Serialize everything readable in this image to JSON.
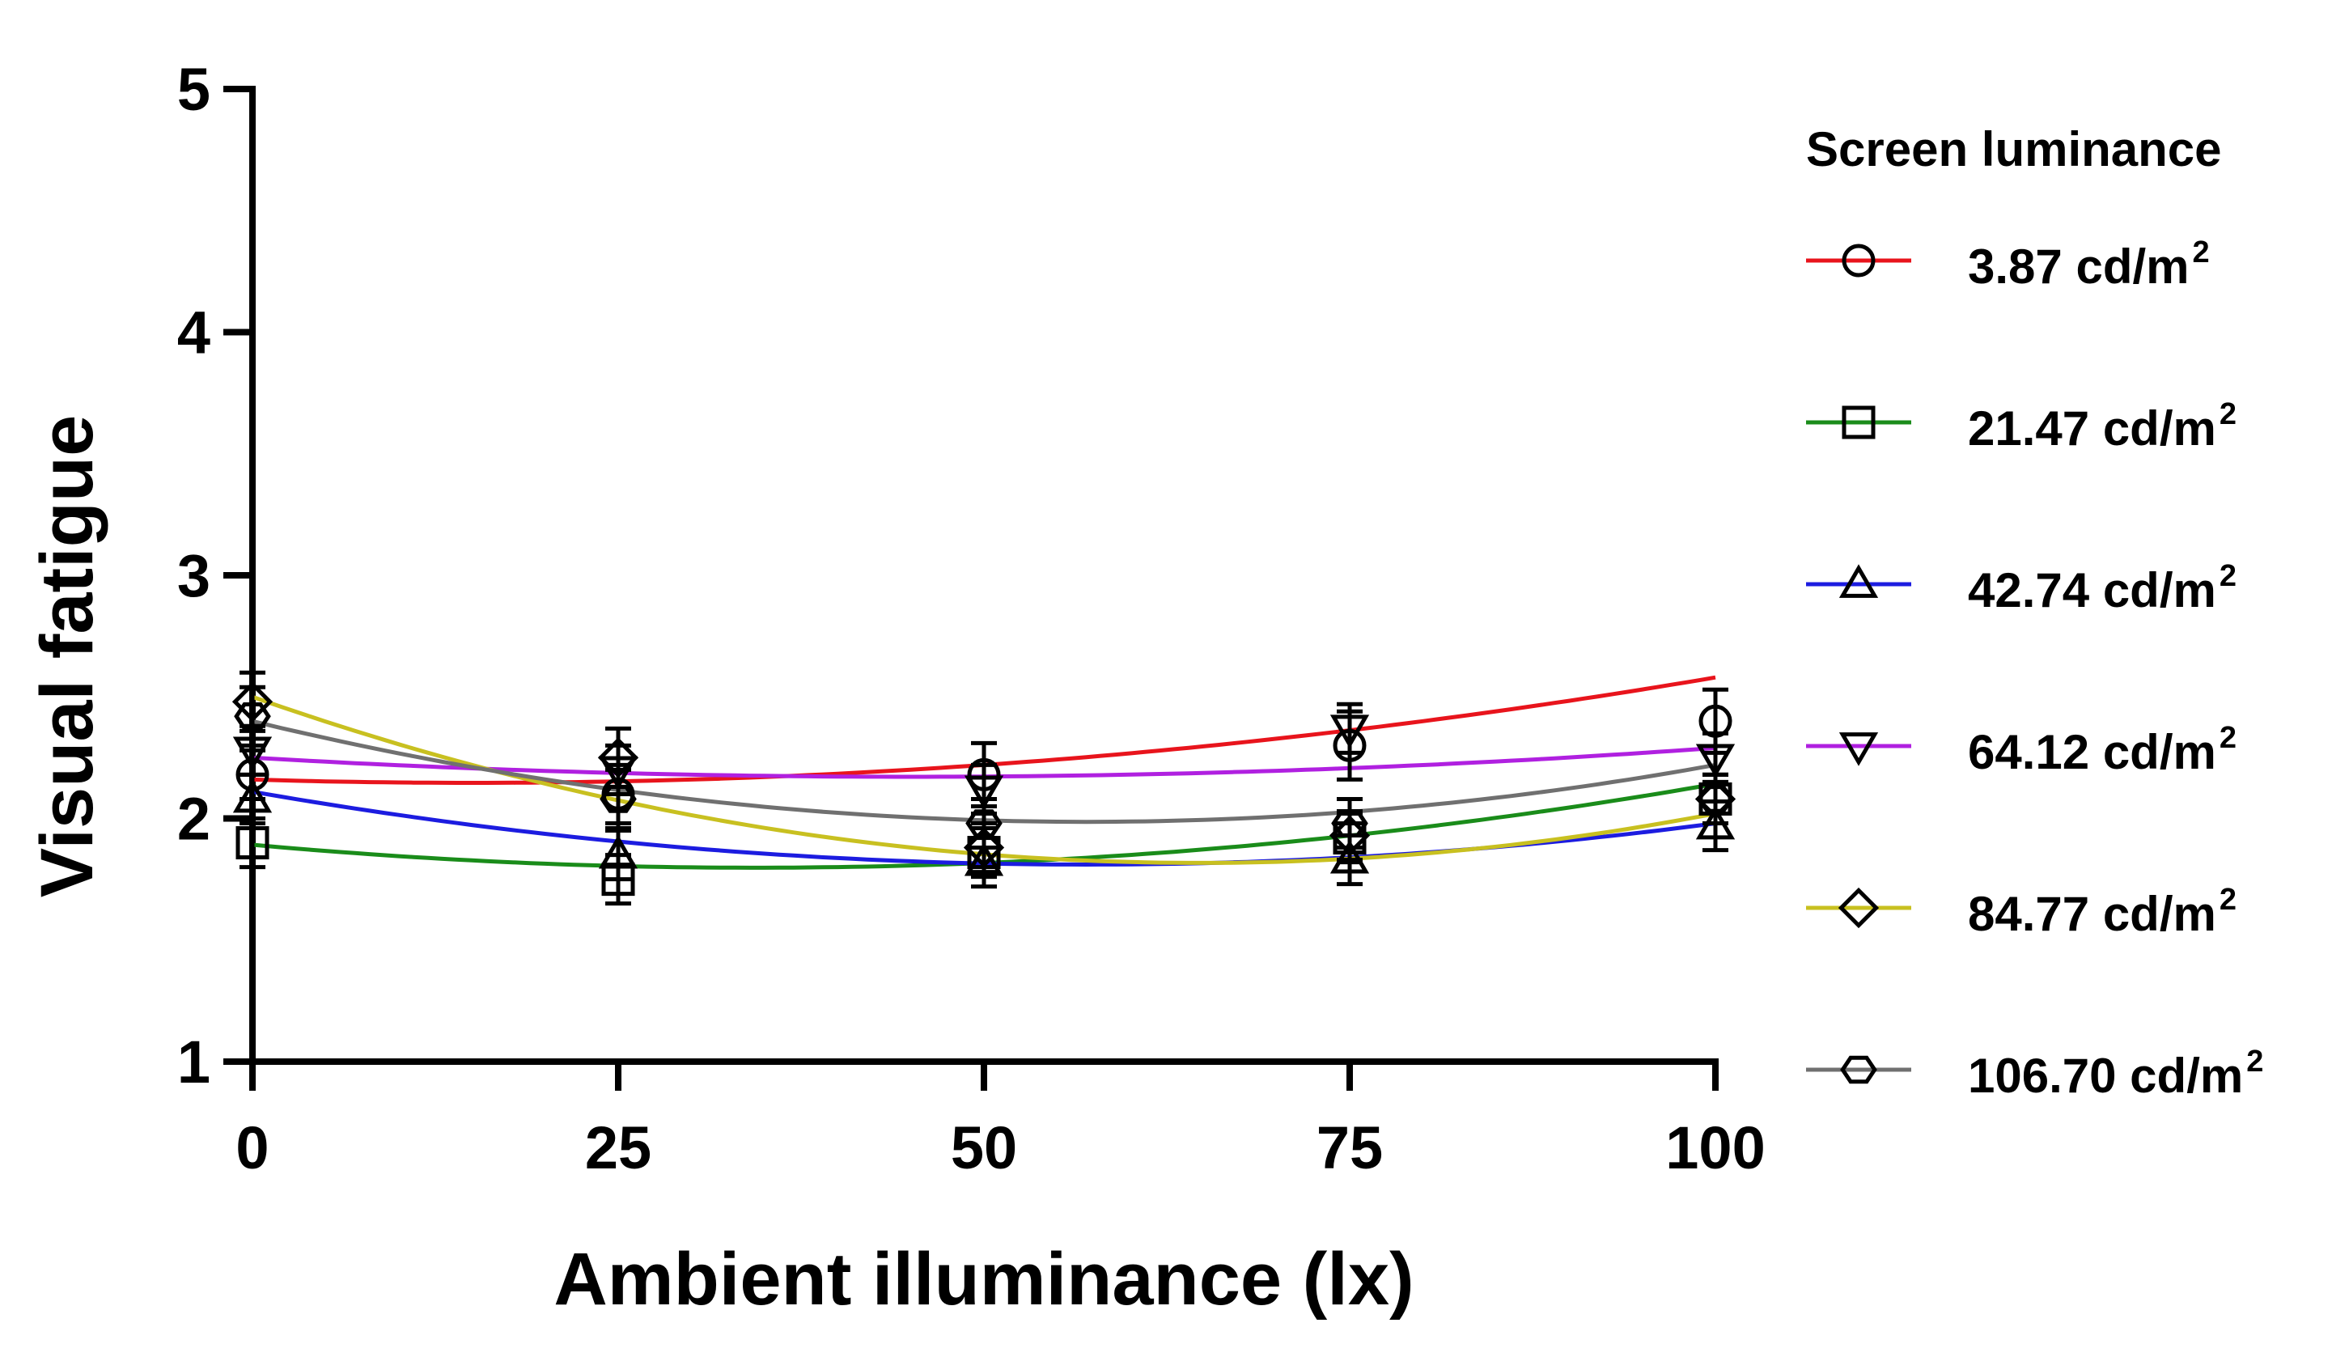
{
  "chart_data": {
    "type": "line",
    "xlabel": "Ambient illuminance (lx)",
    "ylabel": "Visual fatigue",
    "x": [
      0,
      25,
      50,
      75,
      100
    ],
    "xticks": [
      "0",
      "25",
      "50",
      "75",
      "100"
    ],
    "yticks": [
      "1",
      "2",
      "3",
      "4",
      "5"
    ],
    "xlim": [
      0,
      100
    ],
    "ylim": [
      1,
      5
    ],
    "grid": false,
    "legend": {
      "title": "Screen luminance",
      "position": "right"
    },
    "series": [
      {
        "name": "3.87 cd/m2",
        "label_main": "3.87 cd/m",
        "label_sup": "2",
        "color": "#e8141c",
        "marker": "circle",
        "values": [
          2.18,
          2.1,
          2.18,
          2.3,
          2.4
        ],
        "errors": [
          0.1,
          0.12,
          0.13,
          0.14,
          0.13
        ],
        "fit": [
          2.16,
          -0.0018,
          6e-05
        ]
      },
      {
        "name": "21.47 cd/m2",
        "label_main": "21.47 cd/m",
        "label_sup": "2",
        "color": "#1a8c1a",
        "marker": "square",
        "values": [
          1.9,
          1.75,
          1.86,
          1.92,
          2.08
        ],
        "errors": [
          0.1,
          0.1,
          0.1,
          0.1,
          0.1
        ],
        "fit": [
          1.892,
          -0.0055,
          8e-05
        ]
      },
      {
        "name": "42.74 cd/m2",
        "label_main": "42.74 cd/m",
        "label_sup": "2",
        "color": "#1c1ce0",
        "marker": "triangle-up",
        "values": [
          2.08,
          1.85,
          1.82,
          1.83,
          1.97
        ],
        "errors": [
          0.1,
          0.1,
          0.1,
          0.1,
          0.1
        ],
        "fit": [
          2.11,
          -0.0105,
          9.2e-05
        ]
      },
      {
        "name": "64.12 cd/m2",
        "label_main": "64.12 cd/m",
        "label_sup": "2",
        "color": "#b020e0",
        "marker": "triangle-down",
        "values": [
          2.28,
          2.2,
          2.12,
          2.37,
          2.25
        ],
        "errors": [
          0.1,
          0.1,
          0.1,
          0.1,
          0.1
        ],
        "fit": [
          2.25,
          -0.0035,
          3.9e-05
        ]
      },
      {
        "name": "84.77 cd/m2",
        "label_main": "84.77 cd/m",
        "label_sup": "2",
        "color": "#c8c020",
        "marker": "diamond",
        "values": [
          2.48,
          2.25,
          1.88,
          1.93,
          2.08
        ],
        "errors": [
          0.12,
          0.12,
          0.1,
          0.1,
          0.1
        ],
        "fit": [
          2.5,
          -0.0211,
          0.000163
        ]
      },
      {
        "name": "106.70 cd/m2",
        "label_main": "106.70 cd/m",
        "label_sup": "2",
        "color": "#707070",
        "marker": "hexagon",
        "values": [
          2.42,
          2.08,
          1.98,
          1.98,
          2.08
        ],
        "errors": [
          0.12,
          0.12,
          0.1,
          0.1,
          0.1
        ],
        "fit": [
          2.4,
          -0.0145,
          0.000127
        ]
      }
    ]
  }
}
